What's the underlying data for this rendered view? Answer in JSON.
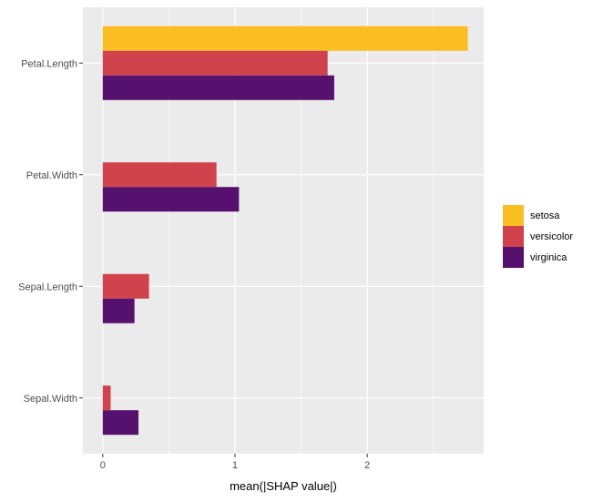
{
  "chart_data": {
    "type": "bar",
    "orientation": "horizontal",
    "categories": [
      "Petal.Length",
      "Petal.Width",
      "Sepal.Length",
      "Sepal.Width"
    ],
    "series": [
      {
        "name": "setosa",
        "color": "#FBBE22",
        "values": [
          2.76,
          0.0,
          0.0,
          0.0
        ]
      },
      {
        "name": "versicolor",
        "color": "#D0434C",
        "values": [
          1.7,
          0.86,
          0.35,
          0.06
        ]
      },
      {
        "name": "virginica",
        "color": "#56106E",
        "values": [
          1.75,
          1.03,
          0.24,
          0.27
        ]
      }
    ],
    "xlabel": "mean(|SHAP value|)",
    "ylabel": "",
    "xlim": [
      -0.15,
      2.88
    ],
    "x_ticks": [
      0,
      1,
      2
    ],
    "x_tick_labels": [
      "0",
      "1",
      "2"
    ],
    "grid": true,
    "panel_background": "#EBEBEB",
    "grid_color": "#FFFFFF",
    "legend_position": "right"
  }
}
